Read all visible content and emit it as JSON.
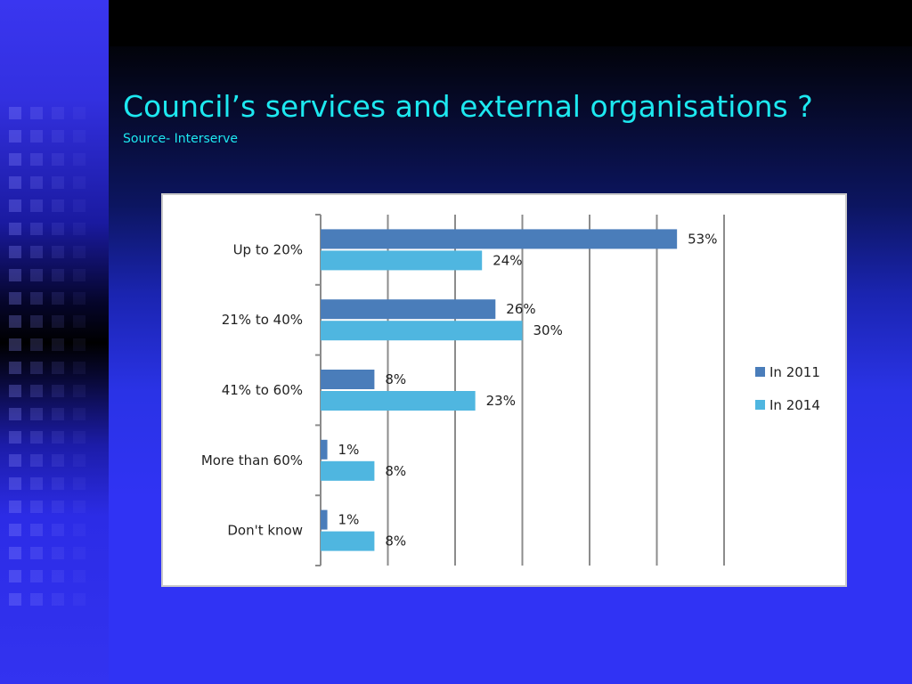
{
  "slide": {
    "title": "Council’s services and external organisations ?",
    "subtitle": "Source- Interserve"
  },
  "colors": {
    "title_text": "#1de8f0",
    "background": "#3033f4",
    "series_2011": "#4a7dba",
    "series_2014": "#4fb6e0",
    "gridline": "#8c8c8c"
  },
  "chart_data": {
    "type": "bar",
    "orientation": "horizontal",
    "categories": [
      "Up to 20%",
      "21% to 40%",
      "41% to 60%",
      "More than 60%",
      "Don't know"
    ],
    "series": [
      {
        "name": "In 2011",
        "values": [
          53,
          26,
          8,
          1,
          1
        ],
        "labels": [
          "53%",
          "26%",
          "8%",
          "1%",
          "1%"
        ]
      },
      {
        "name": "In 2014",
        "values": [
          24,
          30,
          23,
          8,
          8
        ],
        "labels": [
          "24%",
          "30%",
          "23%",
          "8%",
          "8%"
        ]
      }
    ],
    "xlim": [
      0,
      60
    ],
    "grid": true,
    "legend_position": "right"
  }
}
